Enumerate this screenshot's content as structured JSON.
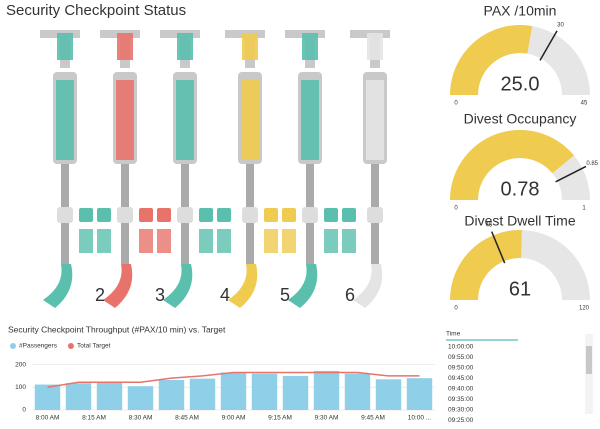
{
  "header": {
    "title": "Security Checkpoint Status"
  },
  "lanes": [
    {
      "color": "#5bbfae"
    },
    {
      "label": "2",
      "color": "#e8736b"
    },
    {
      "label": "3",
      "color": "#5bbfae"
    },
    {
      "label": "4",
      "color": "#efcb4f"
    },
    {
      "label": "5",
      "color": "#5bbfae"
    },
    {
      "label": "6",
      "color": "#e4e4e4"
    }
  ],
  "gauges": [
    {
      "title": "PAX /10min",
      "value": 25.0,
      "value_label": "25.0",
      "min": 0,
      "max": 45,
      "target": 30,
      "color": "#efcb4f"
    },
    {
      "title": "Divest Occupancy",
      "value": 0.78,
      "min": 0,
      "max": 1,
      "target": 0.85,
      "color": "#efcb4f"
    },
    {
      "title": "Divest Dwell Time",
      "value": 61,
      "min": 0,
      "max": 120,
      "target": 45,
      "color": "#efcb4f"
    }
  ],
  "chart_data": {
    "type": "bar",
    "title": "Security Checkpoint Throughput (#PAX/10 min) vs. Target",
    "x": [
      480,
      490,
      500,
      510,
      520,
      530,
      540,
      550,
      560,
      570,
      580,
      590,
      600
    ],
    "xlim": [
      475,
      605
    ],
    "xticks": [
      {
        "value": 480,
        "label": "8:00 AM"
      },
      {
        "value": 495,
        "label": "8:15 AM"
      },
      {
        "value": 510,
        "label": "8:30 AM"
      },
      {
        "value": 525,
        "label": "8:45 AM"
      },
      {
        "value": 540,
        "label": "9:00 AM"
      },
      {
        "value": 555,
        "label": "9:15 AM"
      },
      {
        "value": 570,
        "label": "9:30 AM"
      },
      {
        "value": 585,
        "label": "9:45 AM"
      },
      {
        "value": 600,
        "label": "10:00 ..."
      }
    ],
    "series": [
      {
        "name": "#Passengers",
        "color": "#8fd0e8",
        "values": [
          112,
          118,
          120,
          105,
          132,
          138,
          165,
          160,
          150,
          172,
          160,
          135,
          140
        ]
      },
      {
        "name": "Total Target",
        "color": "#e8736b",
        "values": [
          100,
          122,
          122,
          122,
          140,
          150,
          165,
          165,
          165,
          165,
          165,
          150,
          150
        ]
      }
    ],
    "ylim": [
      0,
      220
    ],
    "yticks": [
      0,
      100,
      200
    ]
  },
  "table": {
    "header": "Time",
    "rows": [
      "10:00:00",
      "09:55:00",
      "09:50:00",
      "09:45:00",
      "09:40:00",
      "09:35:00",
      "09:30:00",
      "09:25:00"
    ]
  }
}
